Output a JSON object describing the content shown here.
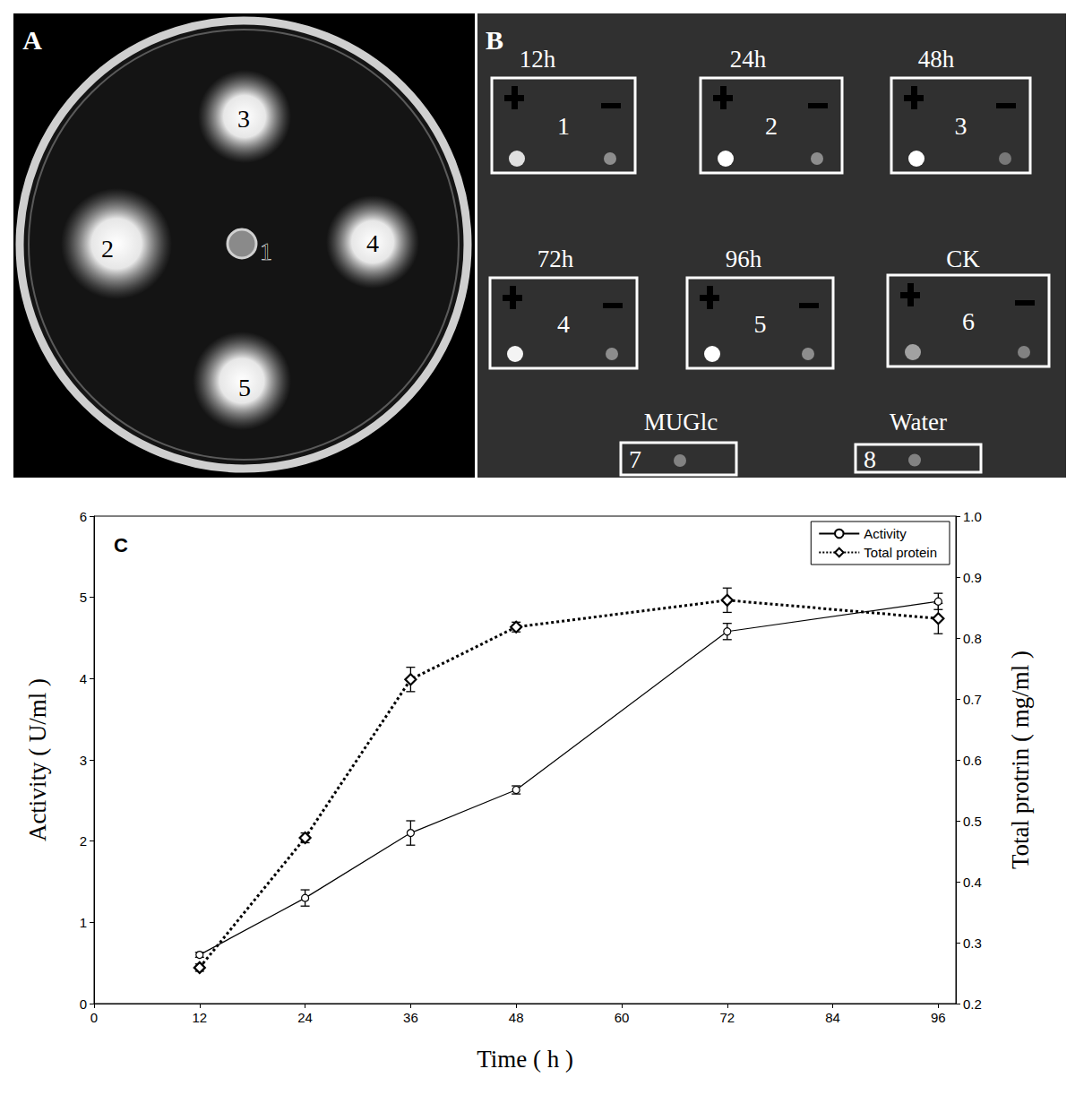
{
  "panels": {
    "A": {
      "label": "A",
      "spots": [
        "1",
        "2",
        "3",
        "4",
        "5"
      ]
    },
    "B": {
      "label": "B",
      "boxes": [
        {
          "title": "12h",
          "label": "1"
        },
        {
          "title": "24h",
          "label": "2"
        },
        {
          "title": "48h",
          "label": "3"
        },
        {
          "title": "72h",
          "label": "4"
        },
        {
          "title": "96h",
          "label": "5"
        },
        {
          "title": "CK",
          "label": "6"
        },
        {
          "title": "MUGlc",
          "label": "7"
        },
        {
          "title": "Water",
          "label": "8"
        }
      ]
    }
  },
  "chart_data": {
    "type": "line",
    "title": "C",
    "x_label": "Time ( h )",
    "y_label": "Activity ( U/ml )",
    "y2_label": "Total protrin ( mg/ml )",
    "x": [
      12,
      24,
      36,
      48,
      72,
      96
    ],
    "series": [
      {
        "name": "Activity",
        "color": "#000000",
        "marker": "circle",
        "line_style": "solid",
        "values": [
          0.6,
          1.3,
          2.1,
          2.63,
          4.58,
          4.95
        ],
        "errors": [
          0.03,
          0.1,
          0.15,
          0.05,
          0.1,
          0.1
        ]
      },
      {
        "name": "Total protein",
        "color": "#000000",
        "marker": "diamond",
        "line_style": "dotted",
        "axis": "y2",
        "values": [
          0.259,
          0.472,
          0.732,
          0.818,
          0.862,
          0.832
        ],
        "errors": [
          0.006,
          0.008,
          0.02,
          0.008,
          0.02,
          0.025
        ]
      }
    ],
    "xlim": [
      0,
      98
    ],
    "xticks": [
      0,
      12,
      24,
      36,
      48,
      60,
      72,
      84,
      96
    ],
    "ylim": [
      0,
      6
    ],
    "yticks": [
      0,
      1,
      2,
      3,
      4,
      5,
      6
    ],
    "y2lim": [
      0.2,
      1
    ],
    "y2ticks": [
      0.2,
      0.3,
      0.4,
      0.5,
      0.6,
      0.7,
      0.8,
      0.9,
      {
        "value": 1,
        "label": "1.0"
      }
    ],
    "grid": false,
    "legend": "upper right"
  }
}
